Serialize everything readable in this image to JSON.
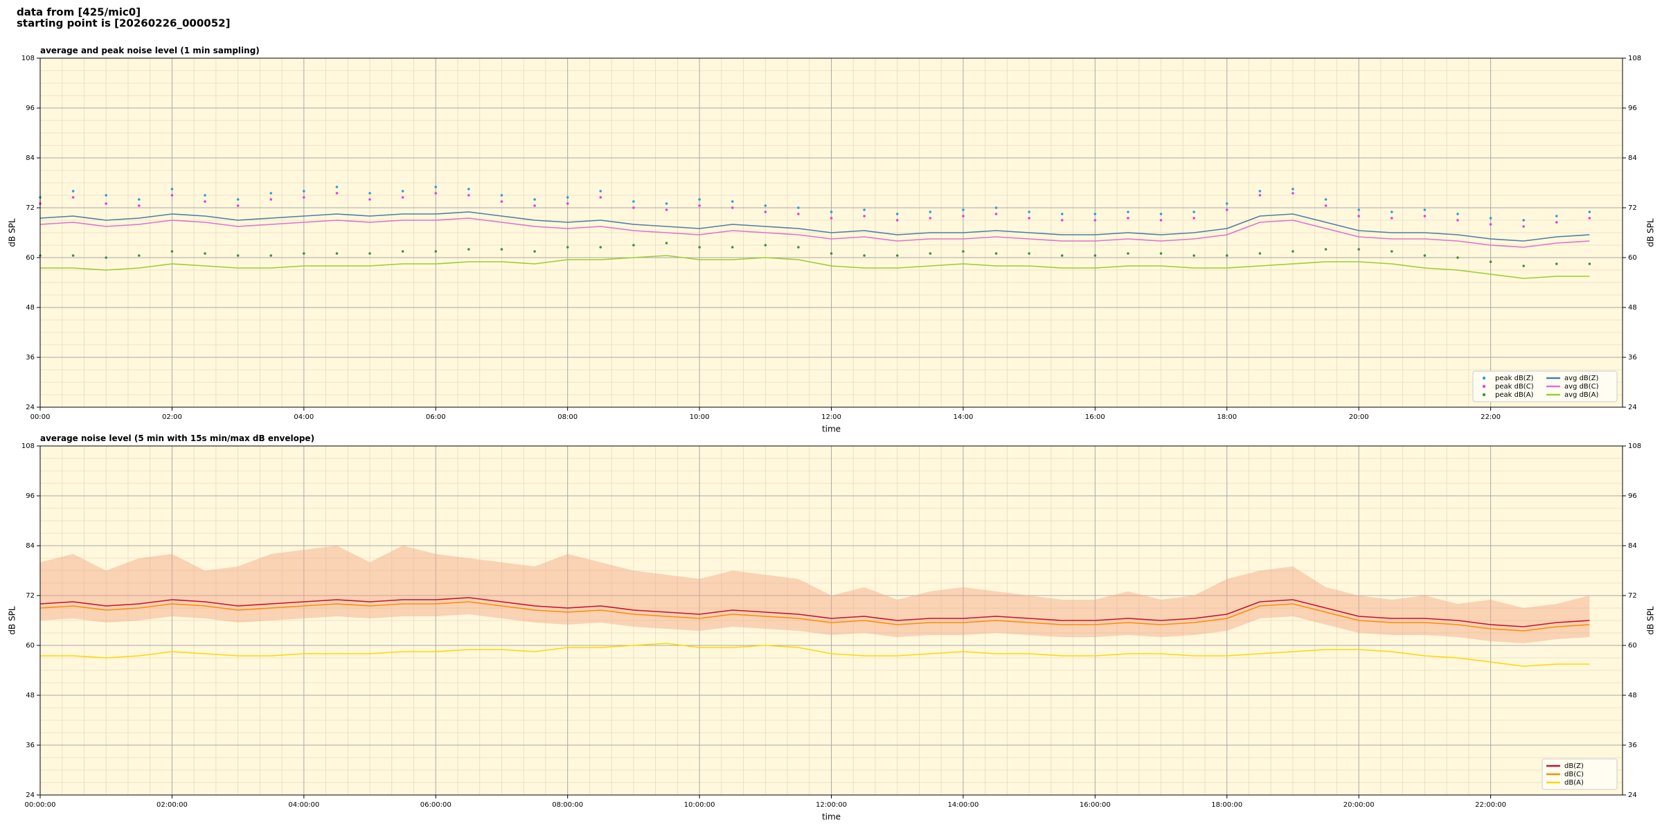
{
  "header": {
    "lines": [
      "data from [425/mic0]",
      "starting point is [20260226_000052]"
    ]
  },
  "chart_data": [
    {
      "type": "line",
      "title": "average and peak noise level (1 min sampling)",
      "xlabel": "time",
      "ylabel": "dB SPL",
      "x": [
        0,
        0.5,
        1,
        1.5,
        2,
        2.5,
        3,
        3.5,
        4,
        4.5,
        5,
        5.5,
        6,
        6.5,
        7,
        7.5,
        8,
        8.5,
        9,
        9.5,
        10,
        10.5,
        11,
        11.5,
        12,
        12.5,
        13,
        13.5,
        14,
        14.5,
        15,
        15.5,
        16,
        16.5,
        17,
        17.5,
        18,
        18.5,
        19,
        19.5,
        20,
        20.5,
        21,
        21.5,
        22,
        22.5,
        23,
        23.5
      ],
      "xlim": [
        0,
        24
      ],
      "xticks": [
        {
          "value": 0,
          "label": "00:00"
        },
        {
          "value": 2,
          "label": "02:00"
        },
        {
          "value": 4,
          "label": "04:00"
        },
        {
          "value": 6,
          "label": "06:00"
        },
        {
          "value": 8,
          "label": "08:00"
        },
        {
          "value": 10,
          "label": "10:00"
        },
        {
          "value": 12,
          "label": "12:00"
        },
        {
          "value": 14,
          "label": "14:00"
        },
        {
          "value": 16,
          "label": "16:00"
        },
        {
          "value": 18,
          "label": "18:00"
        },
        {
          "value": 20,
          "label": "20:00"
        },
        {
          "value": 22,
          "label": "22:00"
        }
      ],
      "ylim": [
        24,
        108
      ],
      "yticks": [
        24,
        36,
        48,
        60,
        72,
        84,
        96,
        108
      ],
      "grid": true,
      "legend": "lower right",
      "legend_columns": 2,
      "background": "#fff8dc",
      "series": [
        {
          "name": "peak dB(Z)",
          "style": "scatter",
          "color": "#2b9fd8",
          "values": [
            74.5,
            76,
            75,
            74,
            76.5,
            75,
            74,
            75.5,
            76,
            77,
            75.5,
            76,
            77,
            76.5,
            75,
            74,
            74.5,
            76,
            73.5,
            73,
            74,
            73.5,
            72.5,
            72,
            71,
            71.5,
            70.5,
            71,
            71.5,
            72,
            71,
            70.5,
            70.5,
            71,
            70.5,
            71,
            73,
            76,
            76.5,
            74,
            71.5,
            71,
            71.5,
            70.5,
            69.5,
            69,
            70,
            71
          ]
        },
        {
          "name": "peak dB(C)",
          "style": "scatter",
          "color": "#e040e0",
          "values": [
            73,
            74.5,
            73,
            72.5,
            75,
            73.5,
            72.5,
            74,
            74.5,
            75.5,
            74,
            74.5,
            75.5,
            75,
            73.5,
            72.5,
            73,
            74.5,
            72,
            71.5,
            72.5,
            72,
            71,
            70.5,
            69.5,
            70,
            69,
            69.5,
            70,
            70.5,
            69.5,
            69,
            69,
            69.5,
            69,
            69.5,
            71.5,
            75,
            75.5,
            72.5,
            70,
            69.5,
            70,
            69,
            68,
            67.5,
            68.5,
            69.5
          ]
        },
        {
          "name": "peak dB(A)",
          "style": "scatter",
          "color": "#3f8f3f",
          "values": [
            60.5,
            60.5,
            60,
            60.5,
            61.5,
            61,
            60.5,
            60.5,
            61,
            61,
            61,
            61.5,
            61.5,
            62,
            62,
            61.5,
            62.5,
            62.5,
            63,
            63.5,
            62.5,
            62.5,
            63,
            62.5,
            61,
            60.5,
            60.5,
            61,
            61.5,
            61,
            61,
            60.5,
            60.5,
            61,
            61,
            60.5,
            60.5,
            61,
            61.5,
            62,
            62,
            61.5,
            60.5,
            60,
            59,
            58,
            58.5,
            58.5
          ]
        },
        {
          "name": "avg dB(Z)",
          "style": "line",
          "color": "#4a7ea8",
          "values": [
            69.5,
            70,
            69,
            69.5,
            70.5,
            70,
            69,
            69.5,
            70,
            70.5,
            70,
            70.5,
            70.5,
            71,
            70,
            69,
            68.5,
            69,
            68,
            67.5,
            67,
            68,
            67.5,
            67,
            66,
            66.5,
            65.5,
            66,
            66,
            66.5,
            66,
            65.5,
            65.5,
            66,
            65.5,
            66,
            67,
            70,
            70.5,
            68.5,
            66.5,
            66,
            66,
            65.5,
            64.5,
            64,
            65,
            65.5
          ]
        },
        {
          "name": "avg dB(C)",
          "style": "line",
          "color": "#e070d0",
          "values": [
            68,
            68.5,
            67.5,
            68,
            69,
            68.5,
            67.5,
            68,
            68.5,
            69,
            68.5,
            69,
            69,
            69.5,
            68.5,
            67.5,
            67,
            67.5,
            66.5,
            66,
            65.5,
            66.5,
            66,
            65.5,
            64.5,
            65,
            64,
            64.5,
            64.5,
            65,
            64.5,
            64,
            64,
            64.5,
            64,
            64.5,
            65.5,
            68.5,
            69,
            67,
            65,
            64.5,
            64.5,
            64,
            63,
            62.5,
            63.5,
            64
          ]
        },
        {
          "name": "avg dB(A)",
          "style": "line",
          "color": "#9acd32",
          "values": [
            57.5,
            57.5,
            57,
            57.5,
            58.5,
            58,
            57.5,
            57.5,
            58,
            58,
            58,
            58.5,
            58.5,
            59,
            59,
            58.5,
            59.5,
            59.5,
            60,
            60.5,
            59.5,
            59.5,
            60,
            59.5,
            58,
            57.5,
            57.5,
            58,
            58.5,
            58,
            58,
            57.5,
            57.5,
            58,
            58,
            57.5,
            57.5,
            58,
            58.5,
            59,
            59,
            58.5,
            57.5,
            57,
            56,
            55,
            55.5,
            55.5
          ]
        }
      ]
    },
    {
      "type": "line",
      "title": "average noise level (5 min with 15s min/max dB envelope)",
      "xlabel": "time",
      "ylabel": "dB SPL",
      "x": [
        0,
        0.5,
        1,
        1.5,
        2,
        2.5,
        3,
        3.5,
        4,
        4.5,
        5,
        5.5,
        6,
        6.5,
        7,
        7.5,
        8,
        8.5,
        9,
        9.5,
        10,
        10.5,
        11,
        11.5,
        12,
        12.5,
        13,
        13.5,
        14,
        14.5,
        15,
        15.5,
        16,
        16.5,
        17,
        17.5,
        18,
        18.5,
        19,
        19.5,
        20,
        20.5,
        21,
        21.5,
        22,
        22.5,
        23,
        23.5
      ],
      "xlim": [
        0,
        24
      ],
      "xticks": [
        {
          "value": 0,
          "label": "00:00:00"
        },
        {
          "value": 2,
          "label": "02:00:00"
        },
        {
          "value": 4,
          "label": "04:00:00"
        },
        {
          "value": 6,
          "label": "06:00:00"
        },
        {
          "value": 8,
          "label": "08:00:00"
        },
        {
          "value": 10,
          "label": "10:00:00"
        },
        {
          "value": 12,
          "label": "12:00:00"
        },
        {
          "value": 14,
          "label": "14:00:00"
        },
        {
          "value": 16,
          "label": "16:00:00"
        },
        {
          "value": 18,
          "label": "18:00:00"
        },
        {
          "value": 20,
          "label": "20:00:00"
        },
        {
          "value": 22,
          "label": "22:00:00"
        }
      ],
      "ylim": [
        24,
        108
      ],
      "yticks": [
        24,
        36,
        48,
        60,
        72,
        84,
        96,
        108
      ],
      "grid": true,
      "legend": "lower right",
      "legend_columns": 1,
      "background": "#fff8dc",
      "envelope": {
        "color": "#f4a582",
        "lower": [
          66,
          66.5,
          65.5,
          66,
          67,
          66.5,
          65.5,
          66,
          66.5,
          67,
          66.5,
          67,
          67,
          67.5,
          66.5,
          65.5,
          65,
          65.5,
          64.5,
          64,
          63.5,
          64.5,
          64,
          63.5,
          62.5,
          63,
          62,
          62.5,
          62.5,
          63,
          62.5,
          62,
          62,
          62.5,
          62,
          62.5,
          63.5,
          66.5,
          67,
          65,
          63,
          62.5,
          62.5,
          62,
          61,
          60.5,
          61.5,
          62
        ],
        "upper": [
          80,
          82,
          78,
          81,
          82,
          78,
          79,
          82,
          83,
          84,
          80,
          84,
          82,
          81,
          80,
          79,
          82,
          80,
          78,
          77,
          76,
          78,
          77,
          76,
          72,
          74,
          71,
          73,
          74,
          73,
          72,
          71,
          71,
          73,
          71,
          72,
          76,
          78,
          79,
          74,
          72,
          71,
          72,
          70,
          71,
          69,
          70,
          72
        ]
      },
      "series": [
        {
          "name": "dB(Z)",
          "style": "line",
          "color": "#c8102e",
          "values": [
            70,
            70.5,
            69.5,
            70,
            71,
            70.5,
            69.5,
            70,
            70.5,
            71,
            70.5,
            71,
            71,
            71.5,
            70.5,
            69.5,
            69,
            69.5,
            68.5,
            68,
            67.5,
            68.5,
            68,
            67.5,
            66.5,
            67,
            66,
            66.5,
            66.5,
            67,
            66.5,
            66,
            66,
            66.5,
            66,
            66.5,
            67.5,
            70.5,
            71,
            69,
            67,
            66.5,
            66.5,
            66,
            65,
            64.5,
            65.5,
            66
          ]
        },
        {
          "name": "dB(C)",
          "style": "line",
          "color": "#ff8c00",
          "values": [
            69,
            69.5,
            68.5,
            69,
            70,
            69.5,
            68.5,
            69,
            69.5,
            70,
            69.5,
            70,
            70,
            70.5,
            69.5,
            68.5,
            68,
            68.5,
            67.5,
            67,
            66.5,
            67.5,
            67,
            66.5,
            65.5,
            66,
            65,
            65.5,
            65.5,
            66,
            65.5,
            65,
            65,
            65.5,
            65,
            65.5,
            66.5,
            69.5,
            70,
            68,
            66,
            65.5,
            65.5,
            65,
            64,
            63.5,
            64.5,
            65
          ]
        },
        {
          "name": "dB(A)",
          "style": "line",
          "color": "#ffd700",
          "values": [
            57.5,
            57.5,
            57,
            57.5,
            58.5,
            58,
            57.5,
            57.5,
            58,
            58,
            58,
            58.5,
            58.5,
            59,
            59,
            58.5,
            59.5,
            59.5,
            60,
            60.5,
            59.5,
            59.5,
            60,
            59.5,
            58,
            57.5,
            57.5,
            58,
            58.5,
            58,
            58,
            57.5,
            57.5,
            58,
            58,
            57.5,
            57.5,
            58,
            58.5,
            59,
            59,
            58.5,
            57.5,
            57,
            56,
            55,
            55.5,
            55.5
          ]
        }
      ]
    }
  ]
}
